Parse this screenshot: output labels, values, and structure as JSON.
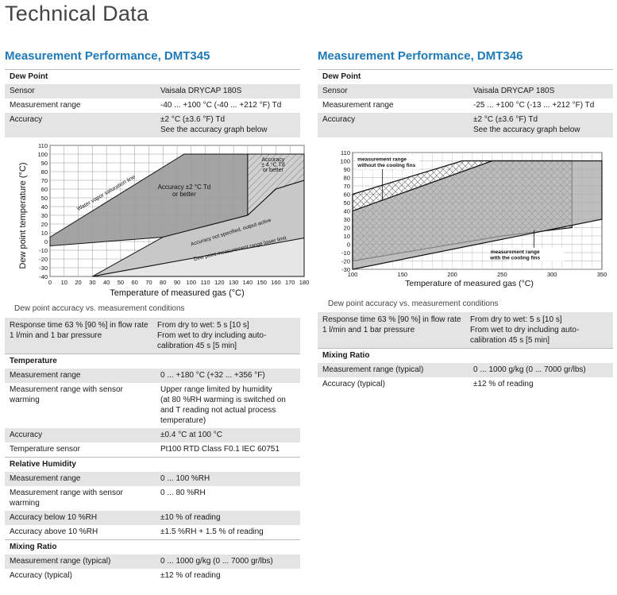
{
  "page_title": "Technical Data",
  "dmt345": {
    "title": "Measurement Performance, DMT345",
    "dew_point": {
      "header": "Dew Point",
      "rows": [
        {
          "label": "Sensor",
          "value": "Vaisala DRYCAP 180S"
        },
        {
          "label": "Measurement range",
          "value": "-40 ... +100 °C (-40 ... +212 °F) Td"
        },
        {
          "label": "Accuracy",
          "value": "±2 °C (±3.6 °F) Td",
          "value2": "See the accuracy graph below"
        }
      ]
    },
    "caption": "Dew point accuracy vs. measurement conditions",
    "response": {
      "label1": "Response time 63 % [90 %] in flow rate",
      "label2": "1 l/min and 1 bar pressure",
      "value1": "From dry to wet: 5 s [10 s]",
      "value2": "From wet to dry including auto-",
      "value3": "calibration 45 s [5 min]"
    },
    "temperature": {
      "header": "Temperature",
      "rows": [
        {
          "label": "Measurement range",
          "value": "0 ... +180 °C (+32 ... +356 °F)"
        },
        {
          "label": "Measurement range with sensor",
          "label2": "warming",
          "value": "Upper range limited by humidity",
          "value2": "(at 80 %RH warming is switched on",
          "value3": "and T reading not actual process",
          "value4": "temperature)"
        },
        {
          "label": "Accuracy",
          "value": "±0.4 °C at 100 °C"
        },
        {
          "label": "Temperature sensor",
          "value": "Pt100 RTD Class F0.1 IEC 60751"
        }
      ]
    },
    "relative_humidity": {
      "header": "Relative Humidity",
      "rows": [
        {
          "label": "Measurement range",
          "value": "0 ... 100 %RH"
        },
        {
          "label": "Measurement range with sensor",
          "label2": "warming",
          "value": "0 ... 80 %RH"
        },
        {
          "label": "Accuracy below 10 %RH",
          "value": "±10 % of reading"
        },
        {
          "label": "Accuracy above 10 %RH",
          "value": "±1.5 %RH + 1.5 % of reading"
        }
      ]
    },
    "mixing_ratio": {
      "header": "Mixing Ratio",
      "rows": [
        {
          "label": "Measurement range (typical)",
          "value": "0 ... 1000 g/kg (0 ... 7000 gr/lbs)"
        },
        {
          "label": "Accuracy (typical)",
          "value": "±12 % of reading"
        }
      ]
    }
  },
  "dmt346": {
    "title": "Measurement Performance, DMT346",
    "dew_point": {
      "header": "Dew Point",
      "rows": [
        {
          "label": "Sensor",
          "value": "Vaisala DRYCAP 180S"
        },
        {
          "label": "Measurement range",
          "value": "-25 ... +100 °C (-13 ... +212 °F) Td"
        },
        {
          "label": "Accuracy",
          "value": "±2 °C (±3.6 °F) Td",
          "value2": "See the accuracy graph below"
        }
      ]
    },
    "caption": "Dew point accuracy vs. measurement conditions",
    "response": {
      "label1": "Response time 63 % [90 %] in flow rate",
      "label2": "1 l/min and 1 bar pressure",
      "value1": "From dry to wet: 5 s [10 s]",
      "value2": "From wet to dry including auto-",
      "value3": "calibration 45 s [5 min]"
    },
    "mixing_ratio": {
      "header": "Mixing Ratio",
      "rows": [
        {
          "label": "Measurement range (typical)",
          "value": "0 ... 1000 g/kg (0 ... 7000 gr/lbs)"
        },
        {
          "label": "Accuracy (typical)",
          "value": "±12 % of reading"
        }
      ]
    }
  },
  "chart_data": [
    {
      "type": "area",
      "xlabel": "Temperature of measured gas (°C)",
      "ylabel": "Dew point temperature (°C)",
      "xlim": [
        0,
        180
      ],
      "ylim": [
        -40,
        110
      ],
      "x_ticks": [
        0,
        10,
        20,
        30,
        40,
        50,
        60,
        70,
        80,
        90,
        100,
        110,
        120,
        130,
        140,
        150,
        160,
        170,
        180
      ],
      "y_ticks": [
        110,
        100,
        90,
        80,
        70,
        60,
        50,
        40,
        30,
        20,
        10,
        0,
        -10,
        -20,
        -30,
        -40
      ],
      "grid": true,
      "regions": [
        {
          "name": "Accuracy ±2 °C Td or better",
          "polygon": [
            [
              0,
              -5
            ],
            [
              0,
              5
            ],
            [
              95,
              100
            ],
            [
              140,
              100
            ],
            [
              140,
              30
            ],
            [
              80,
              5
            ]
          ]
        },
        {
          "name": "Accuracy ± 4 °C Td or better",
          "polygon": [
            [
              140,
              100
            ],
            [
              180,
              100
            ],
            [
              180,
              70
            ],
            [
              160,
              60
            ],
            [
              140,
              30
            ]
          ]
        },
        {
          "name": "Accuracy not specified, output active",
          "polygon": [
            [
              30,
              -40
            ],
            [
              80,
              5
            ],
            [
              140,
              30
            ],
            [
              160,
              60
            ],
            [
              180,
              70
            ],
            [
              180,
              4
            ]
          ]
        },
        {
          "name": "Dew point measurement range lower limit",
          "polygon": [
            [
              30,
              -40
            ],
            [
              180,
              4
            ],
            [
              180,
              -40
            ]
          ]
        }
      ],
      "annotations": [
        "Water vapor saturation line",
        "Accuracy ±2 °C Td",
        "or better",
        "Accuracy",
        "± 4 °C Td",
        "or better",
        "Accuracy not specified, output active",
        "Dew point measurement range lower limit"
      ]
    },
    {
      "type": "area",
      "xlabel": "Temperature of measured gas (°C)",
      "ylabel": "",
      "xlim": [
        100,
        350
      ],
      "ylim": [
        -30,
        110
      ],
      "x_ticks": [
        100,
        150,
        200,
        250,
        300,
        350
      ],
      "y_ticks": [
        110,
        100,
        90,
        80,
        70,
        60,
        50,
        40,
        30,
        20,
        10,
        0,
        -10,
        -20,
        -30
      ],
      "grid": true,
      "regions": [
        {
          "name": "measurement range without the cooling fins",
          "polygon": [
            [
              100,
              60
            ],
            [
              100,
              -20
            ],
            [
              250,
              10
            ],
            [
              320,
              20
            ],
            [
              320,
              100
            ],
            [
              210,
              100
            ]
          ]
        },
        {
          "name": "measurement range with the cooling fins",
          "polygon": [
            [
              100,
              40
            ],
            [
              100,
              -30
            ],
            [
              350,
              30
            ],
            [
              350,
              100
            ],
            [
              240,
              100
            ]
          ]
        }
      ],
      "annotations": [
        "measurement range",
        "without the cooling fins",
        "measurement range",
        "with the cooling fins"
      ]
    }
  ]
}
